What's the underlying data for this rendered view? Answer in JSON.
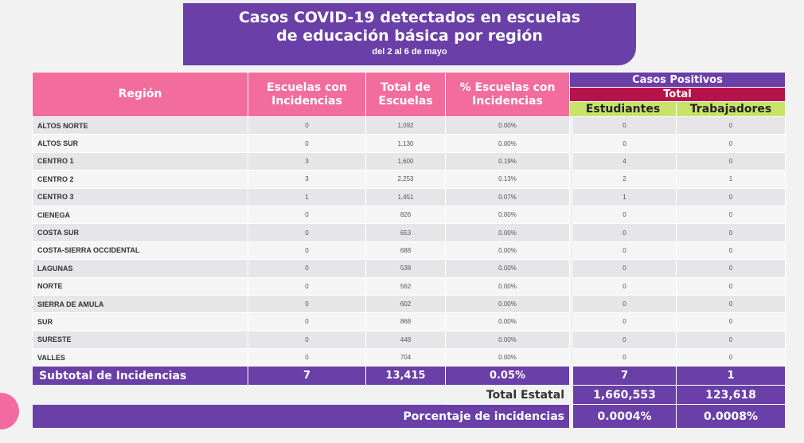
{
  "title": {
    "line1": "Casos COVID-19 detectados en escuelas",
    "line2": "de educación básica por región",
    "subtitle": "del 2 al 6 de mayo"
  },
  "colors": {
    "purple": "#6a3fa8",
    "pink": "#f26d9c",
    "crimson": "#b5134a",
    "green": "#c9e26a"
  },
  "headers": {
    "region": "Región",
    "escuelas_con": "Escuelas con Incidencias",
    "total_escuelas": "Total de Escuelas",
    "pct_escuelas": "% Escuelas con Incidencias",
    "casos_positivos": "Casos Positivos",
    "total": "Total",
    "estudiantes": "Estudiantes",
    "trabajadores": "Trabajadores"
  },
  "rows": [
    {
      "region": "ALTOS NORTE",
      "escuelas": "0",
      "total": "1,092",
      "pct": "0.00%",
      "estudiantes": "0",
      "trabajadores": "0"
    },
    {
      "region": "ALTOS SUR",
      "escuelas": "0",
      "total": "1,130",
      "pct": "0.00%",
      "estudiantes": "0",
      "trabajadores": "0"
    },
    {
      "region": "CENTRO 1",
      "escuelas": "3",
      "total": "1,600",
      "pct": "0.19%",
      "estudiantes": "4",
      "trabajadores": "0"
    },
    {
      "region": "CENTRO 2",
      "escuelas": "3",
      "total": "2,253",
      "pct": "0.13%",
      "estudiantes": "2",
      "trabajadores": "1"
    },
    {
      "region": "CENTRO 3",
      "escuelas": "1",
      "total": "1,451",
      "pct": "0.07%",
      "estudiantes": "1",
      "trabajadores": "0"
    },
    {
      "region": "CIENEGA",
      "escuelas": "0",
      "total": "826",
      "pct": "0.00%",
      "estudiantes": "0",
      "trabajadores": "0"
    },
    {
      "region": "COSTA SUR",
      "escuelas": "0",
      "total": "653",
      "pct": "0.00%",
      "estudiantes": "0",
      "trabajadores": "0"
    },
    {
      "region": "COSTA-SIERRA OCCIDENTAL",
      "escuelas": "0",
      "total": "688",
      "pct": "0.00%",
      "estudiantes": "0",
      "trabajadores": "0"
    },
    {
      "region": "LAGUNAS",
      "escuelas": "0",
      "total": "538",
      "pct": "0.00%",
      "estudiantes": "0",
      "trabajadores": "0"
    },
    {
      "region": "NORTE",
      "escuelas": "0",
      "total": "562",
      "pct": "0.00%",
      "estudiantes": "0",
      "trabajadores": "0"
    },
    {
      "region": "SIERRA DE AMULA",
      "escuelas": "0",
      "total": "602",
      "pct": "0.00%",
      "estudiantes": "0",
      "trabajadores": "0"
    },
    {
      "region": "SUR",
      "escuelas": "0",
      "total": "868",
      "pct": "0.00%",
      "estudiantes": "0",
      "trabajadores": "0"
    },
    {
      "region": "SURESTE",
      "escuelas": "0",
      "total": "448",
      "pct": "0.00%",
      "estudiantes": "0",
      "trabajadores": "0"
    },
    {
      "region": "VALLES",
      "escuelas": "0",
      "total": "704",
      "pct": "0.00%",
      "estudiantes": "0",
      "trabajadores": "0"
    }
  ],
  "subtotal": {
    "label": "Subtotal de Incidencias",
    "escuelas": "7",
    "total": "13,415",
    "pct": "0.05%",
    "estudiantes": "7",
    "trabajadores": "1"
  },
  "total_estatal": {
    "label": "Total Estatal",
    "estudiantes": "1,660,553",
    "trabajadores": "123,618"
  },
  "porcentaje": {
    "label": "Porcentaje de incidencias",
    "estudiantes": "0.0004%",
    "trabajadores": "0.0008%"
  }
}
